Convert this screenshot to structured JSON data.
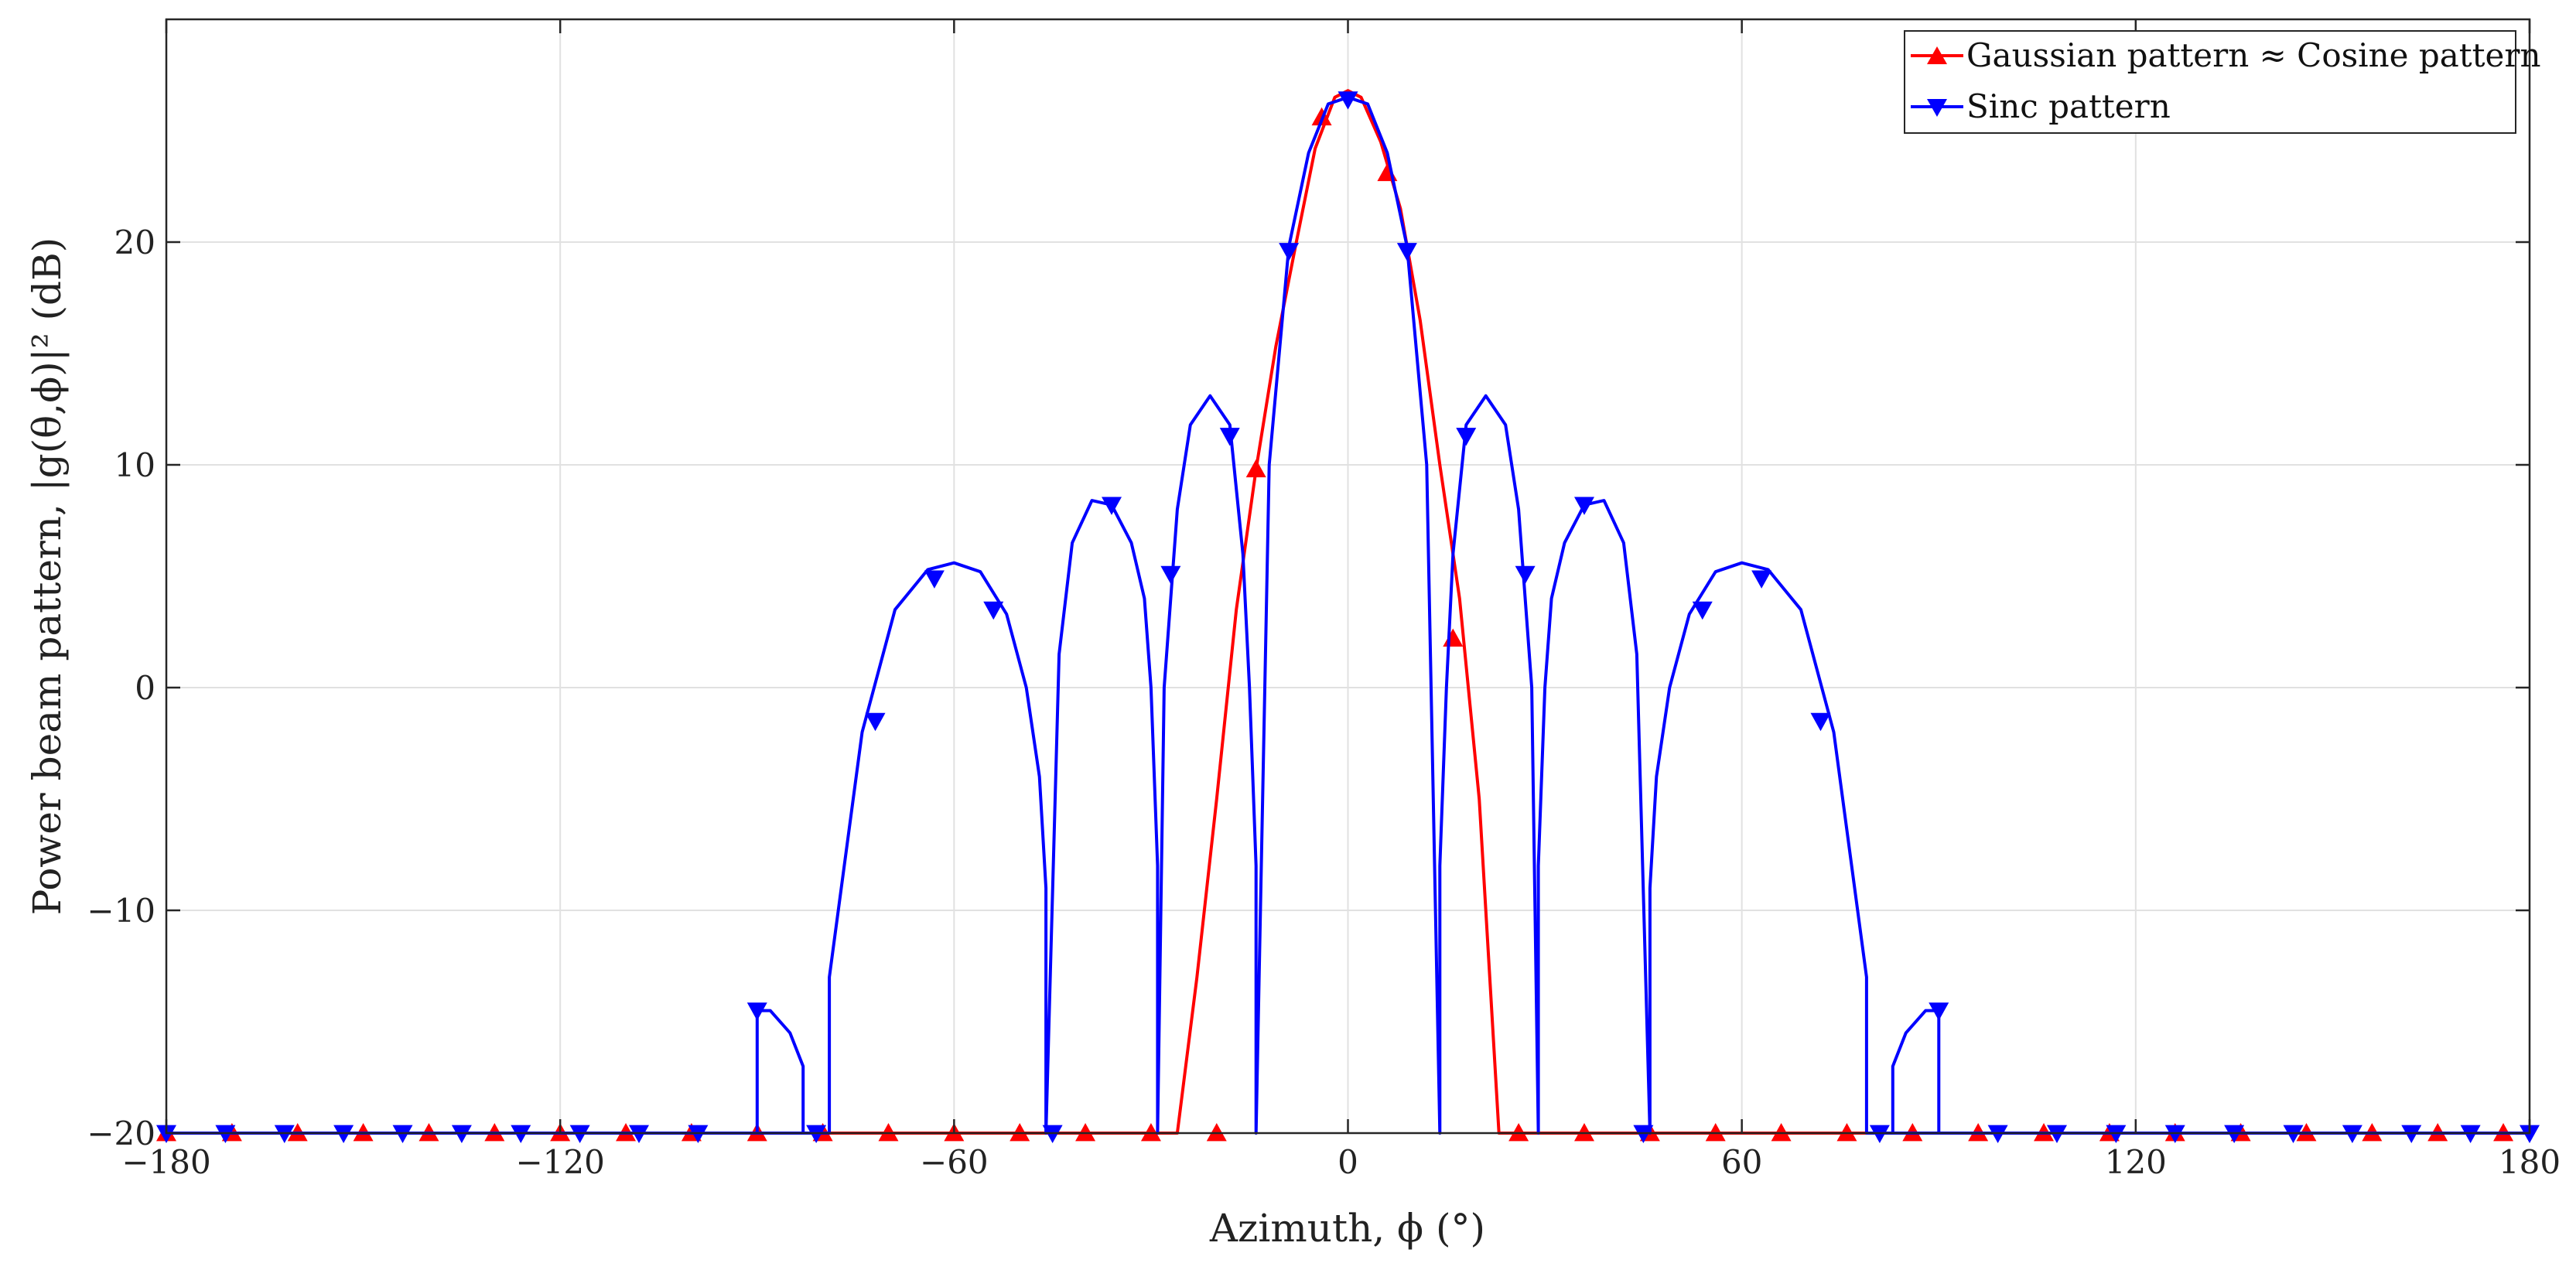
{
  "chart_data": {
    "type": "line",
    "title": "",
    "xlabel": "Azimuth, ϕ (°)",
    "ylabel": "Power beam pattern, |g(θ,ϕ)|² (dB)",
    "xlim": [
      -180,
      180
    ],
    "ylim": [
      -20,
      30
    ],
    "xticks": [
      -180,
      -120,
      -60,
      0,
      60,
      120,
      180
    ],
    "yticks": [
      -20,
      -10,
      0,
      10,
      20
    ],
    "xtick_labels": [
      "−180",
      "−120",
      "−60",
      "0",
      "60",
      "120",
      "180"
    ],
    "ytick_labels": [
      "−20",
      "−10",
      "0",
      "10",
      "20"
    ],
    "grid": true,
    "legend_position": "top-right",
    "series": [
      {
        "name": "Gaussian pattern ≈ Cosine pattern",
        "color": "#ff0000",
        "marker": "triangle-up",
        "x": [
          -180,
          -26,
          -23,
          -20,
          -17,
          -14,
          -11,
          -8,
          -5,
          -2,
          0,
          2,
          5,
          8,
          11,
          14,
          17,
          20,
          23,
          180
        ],
        "y": [
          -20,
          -20,
          -13,
          -5,
          3.5,
          9.8,
          15.3,
          19.8,
          24.2,
          26.5,
          26.8,
          26.5,
          24.5,
          21.5,
          16.5,
          10,
          4,
          -5,
          -20,
          -20
        ],
        "marker_x": [
          -180,
          -170,
          -160,
          -150,
          -140,
          -130,
          -120,
          -110,
          -100,
          -90,
          -80,
          -70,
          -60,
          -50,
          -40,
          -30,
          -20,
          -14,
          -4,
          6,
          16,
          26,
          36,
          46,
          56,
          66,
          76,
          86,
          96,
          106,
          116,
          126,
          136,
          146,
          156,
          166,
          176
        ],
        "marker_y": [
          -20,
          -20,
          -20,
          -20,
          -20,
          -20,
          -20,
          -20,
          -20,
          -20,
          -20,
          -20,
          -20,
          -20,
          -20,
          -20,
          -20,
          9.8,
          25.6,
          23.1,
          2.2,
          -20,
          -20,
          -20,
          -20,
          -20,
          -20,
          -20,
          -20,
          -20,
          -20,
          -20,
          -20,
          -20,
          -20,
          -20,
          -20
        ]
      },
      {
        "name": "Sinc pattern",
        "color": "#0000ff",
        "marker": "triangle-down",
        "x": [
          -180,
          -83,
          -83,
          -85,
          -88,
          -90,
          -90,
          -79,
          -79,
          -74,
          -69,
          -64,
          -60,
          -56,
          -52,
          -49,
          -47,
          -46,
          -46,
          -44,
          -42,
          -39,
          -36,
          -33,
          -31,
          -30,
          -29,
          -29,
          -28,
          -26,
          -24,
          -21,
          -18,
          -16,
          -15,
          -14,
          -14,
          -12,
          -9,
          -6,
          -3,
          0,
          3,
          6,
          9,
          12,
          14,
          14,
          15,
          16,
          18,
          21,
          24,
          26,
          28,
          29,
          29,
          30,
          31,
          33,
          36,
          39,
          42,
          44,
          46,
          46,
          47,
          49,
          52,
          56,
          60,
          64,
          69,
          74,
          79,
          79,
          90,
          90,
          88,
          85,
          83,
          83,
          180
        ],
        "y": [
          -20,
          -20,
          -17,
          -15.5,
          -14.5,
          -14.5,
          -20,
          -20,
          -13,
          -2,
          3.5,
          5.3,
          5.6,
          5.2,
          3.3,
          0,
          -4,
          -9,
          -20,
          1.5,
          6.5,
          8.4,
          8.2,
          6.5,
          4,
          0,
          -8,
          -20,
          0,
          8,
          11.8,
          13.1,
          11.8,
          6,
          0,
          -8,
          -20,
          10,
          19.8,
          24,
          26.2,
          26.5,
          26.2,
          24,
          19.8,
          10,
          -20,
          -8,
          0,
          6,
          11.8,
          13.1,
          11.8,
          8,
          0,
          -20,
          -8,
          0,
          4,
          6.5,
          8.2,
          8.4,
          6.5,
          1.5,
          -20,
          -9,
          -4,
          0,
          3.3,
          5.2,
          5.6,
          5.3,
          3.5,
          -2,
          -13,
          -20,
          -20,
          -14.5,
          -14.5,
          -15.5,
          -17,
          -20,
          -20
        ],
        "marker_x": [
          -180,
          -171,
          -162,
          -153,
          -144,
          -135,
          -126,
          -117,
          -108,
          -99,
          -90,
          -81,
          -72,
          -63,
          -54,
          -45,
          -36,
          -27,
          -18,
          -9,
          0,
          9,
          18,
          27,
          36,
          45,
          54,
          63,
          72,
          81,
          90,
          99,
          108,
          117,
          126,
          135,
          144,
          153,
          162,
          171,
          180
        ],
        "marker_y": [
          -20,
          -20,
          -20,
          -20,
          -20,
          -20,
          -20,
          -20,
          -20,
          -20,
          -14.5,
          -20,
          -1.5,
          4.9,
          3.5,
          -20,
          8.2,
          5.1,
          11.3,
          19.6,
          26.4,
          19.6,
          11.3,
          5.1,
          8.2,
          -20,
          3.5,
          4.9,
          -1.5,
          -20,
          -14.5,
          -20,
          -20,
          -20,
          -20,
          -20,
          -20,
          -20,
          -20,
          -20,
          -20
        ]
      }
    ]
  }
}
